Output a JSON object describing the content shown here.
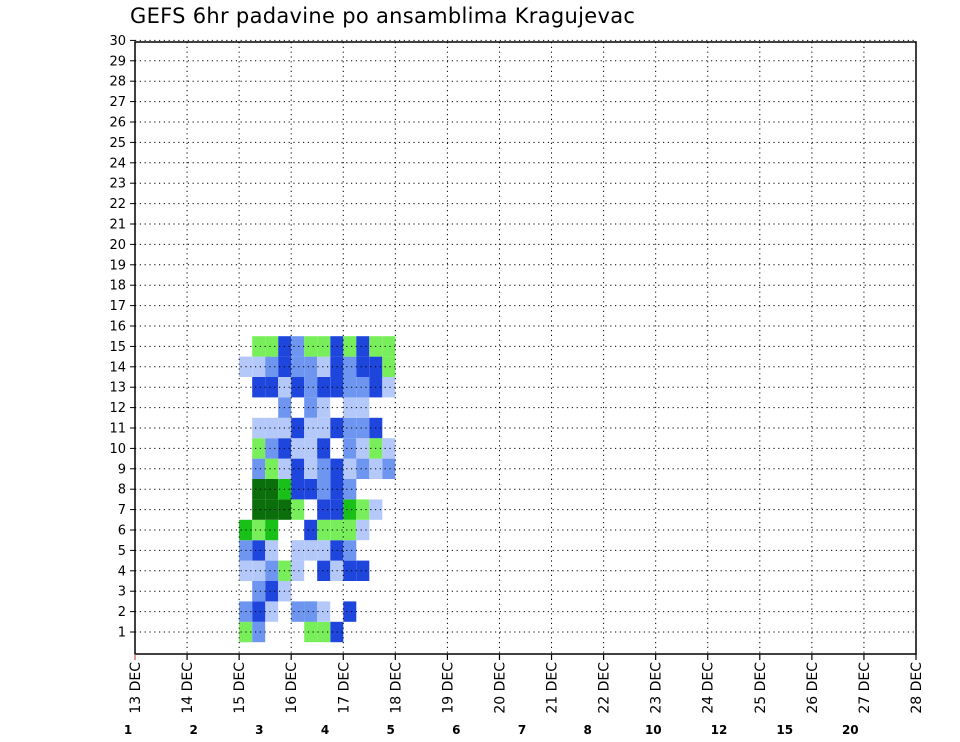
{
  "title": "GEFS 6hr padavine po ansamblima Kragujevac",
  "chart_data": {
    "type": "heatmap",
    "title": "GEFS 6hr padavine po ansamblima Kragujevac",
    "xlabel": "",
    "ylabel": "",
    "x_tick_labels": [
      "13 DEC",
      "14 DEC",
      "15 DEC",
      "16 DEC",
      "17 DEC",
      "18 DEC",
      "19 DEC",
      "20 DEC",
      "21 DEC",
      "22 DEC",
      "23 DEC",
      "24 DEC",
      "25 DEC",
      "26 DEC",
      "27 DEC",
      "28 DEC"
    ],
    "y_tick_labels": [
      "1",
      "2",
      "3",
      "4",
      "5",
      "6",
      "7",
      "8",
      "9",
      "10",
      "11",
      "12",
      "13",
      "14",
      "15",
      "16",
      "17",
      "18",
      "19",
      "20",
      "21",
      "22",
      "23",
      "24",
      "25",
      "26",
      "27",
      "28",
      "29",
      "30"
    ],
    "grid": true,
    "colorbar": {
      "labels": [
        "1",
        "2",
        "3",
        "4",
        "5",
        "6",
        "7",
        "8",
        "10",
        "12",
        "15",
        "20"
      ],
      "colors": [
        "#b4c8fa",
        "#6e96f0",
        "#1e46dc",
        "#78ee5a",
        "#18c018",
        "#0a6e0a",
        "#ffff00",
        "#ffb43c",
        "#ff7814",
        "#e64614",
        "#b41414",
        "#6e0a0a"
      ]
    },
    "cells": [
      [
        15.0,
        0,
        1
      ],
      [
        15.0,
        0,
        4
      ],
      [
        15.25,
        0,
        2
      ],
      [
        15.5,
        1,
        1
      ],
      [
        16.25,
        0,
        4
      ],
      [
        16.75,
        0,
        3
      ],
      [
        16.5,
        0,
        4
      ],
      [
        15.0,
        1,
        2
      ],
      [
        15.25,
        1,
        3
      ],
      [
        16.25,
        1,
        4
      ],
      [
        16.0,
        1,
        2
      ],
      [
        16.25,
        1,
        2
      ],
      [
        16.5,
        1,
        1
      ],
      [
        17.0,
        1,
        3
      ],
      [
        15.5,
        2,
        3
      ],
      [
        15.25,
        2,
        2
      ],
      [
        15.75,
        2,
        1
      ],
      [
        15.75,
        3,
        4
      ],
      [
        16.0,
        3,
        1
      ],
      [
        16.75,
        3,
        1
      ],
      [
        15.5,
        3,
        2
      ],
      [
        15.25,
        3,
        1
      ],
      [
        15.0,
        3,
        1
      ],
      [
        16.5,
        3,
        3
      ],
      [
        17.0,
        3,
        3
      ],
      [
        17.25,
        3,
        3
      ],
      [
        15.25,
        4,
        3
      ],
      [
        15.5,
        4,
        1
      ],
      [
        15.0,
        4,
        2
      ],
      [
        16.0,
        4,
        1
      ],
      [
        16.25,
        4,
        1
      ],
      [
        16.5,
        4,
        1
      ],
      [
        16.75,
        4,
        3
      ],
      [
        17.0,
        4,
        2
      ],
      [
        15.25,
        5,
        4
      ],
      [
        15.5,
        5,
        5
      ],
      [
        15.0,
        5,
        5
      ],
      [
        16.25,
        5,
        3
      ],
      [
        16.5,
        5,
        4
      ],
      [
        16.75,
        5,
        4
      ],
      [
        17.0,
        5,
        4
      ],
      [
        17.25,
        5,
        1
      ],
      [
        15.5,
        6,
        6
      ],
      [
        15.25,
        6,
        6
      ],
      [
        15.75,
        6,
        6
      ],
      [
        16.0,
        6,
        4
      ],
      [
        16.5,
        6,
        3
      ],
      [
        16.75,
        6,
        3
      ],
      [
        17.0,
        6,
        5
      ],
      [
        17.25,
        6,
        4
      ],
      [
        17.5,
        6,
        1
      ],
      [
        15.25,
        7,
        6
      ],
      [
        15.5,
        7,
        6
      ],
      [
        15.75,
        7,
        5
      ],
      [
        16.0,
        7,
        3
      ],
      [
        16.25,
        7,
        3
      ],
      [
        16.5,
        7,
        2
      ],
      [
        16.75,
        7,
        3
      ],
      [
        17.0,
        7,
        2
      ],
      [
        15.25,
        8,
        2
      ],
      [
        15.5,
        8,
        4
      ],
      [
        15.75,
        8,
        1
      ],
      [
        16.0,
        8,
        3
      ],
      [
        16.25,
        8,
        1
      ],
      [
        16.5,
        8,
        2
      ],
      [
        16.75,
        8,
        3
      ],
      [
        17.0,
        8,
        1
      ],
      [
        17.25,
        8,
        2
      ],
      [
        17.5,
        8,
        1
      ],
      [
        17.75,
        8,
        2
      ],
      [
        15.25,
        9,
        4
      ],
      [
        15.5,
        9,
        2
      ],
      [
        15.75,
        9,
        3
      ],
      [
        16.0,
        9,
        1
      ],
      [
        16.25,
        9,
        1
      ],
      [
        16.5,
        9,
        3
      ],
      [
        17.0,
        9,
        2
      ],
      [
        17.25,
        9,
        1
      ],
      [
        17.5,
        9,
        4
      ],
      [
        17.75,
        9,
        1
      ],
      [
        15.25,
        10,
        1
      ],
      [
        15.5,
        10,
        1
      ],
      [
        15.75,
        10,
        1
      ],
      [
        16.0,
        10,
        3
      ],
      [
        16.25,
        10,
        1
      ],
      [
        16.5,
        10,
        1
      ],
      [
        16.75,
        10,
        3
      ],
      [
        17.0,
        10,
        2
      ],
      [
        17.25,
        10,
        2
      ],
      [
        17.5,
        10,
        3
      ],
      [
        15.75,
        11,
        2
      ],
      [
        16.25,
        11,
        2
      ],
      [
        16.5,
        11,
        1
      ],
      [
        17.0,
        11,
        1
      ],
      [
        17.25,
        11,
        1
      ],
      [
        15.25,
        12,
        3
      ],
      [
        15.5,
        12,
        3
      ],
      [
        15.75,
        12,
        1
      ],
      [
        16.0,
        12,
        3
      ],
      [
        16.25,
        12,
        2
      ],
      [
        16.5,
        12,
        3
      ],
      [
        16.75,
        12,
        3
      ],
      [
        17.0,
        12,
        2
      ],
      [
        17.25,
        12,
        2
      ],
      [
        17.5,
        12,
        3
      ],
      [
        17.75,
        12,
        1
      ],
      [
        15.0,
        13,
        1
      ],
      [
        15.25,
        13,
        1
      ],
      [
        15.5,
        13,
        2
      ],
      [
        15.75,
        13,
        3
      ],
      [
        16.0,
        13,
        2
      ],
      [
        16.25,
        13,
        2
      ],
      [
        16.5,
        13,
        1
      ],
      [
        16.75,
        13,
        3
      ],
      [
        17.0,
        13,
        2
      ],
      [
        17.25,
        13,
        3
      ],
      [
        17.5,
        13,
        3
      ],
      [
        17.75,
        13,
        4
      ],
      [
        15.25,
        14,
        4
      ],
      [
        15.5,
        14,
        4
      ],
      [
        15.75,
        14,
        3
      ],
      [
        16.0,
        14,
        2
      ],
      [
        16.25,
        14,
        4
      ],
      [
        16.5,
        14,
        4
      ],
      [
        16.75,
        14,
        3
      ],
      [
        17.0,
        14,
        4
      ],
      [
        17.25,
        14,
        3
      ],
      [
        17.5,
        14,
        4
      ],
      [
        17.75,
        14,
        4
      ]
    ]
  }
}
